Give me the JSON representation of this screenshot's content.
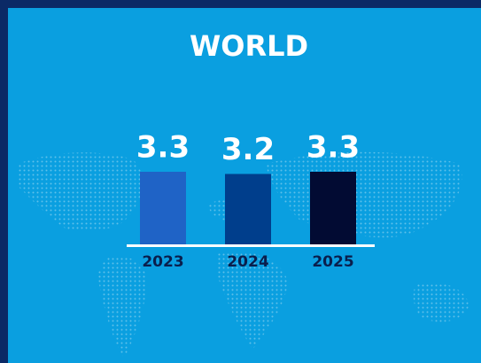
{
  "chart_data": {
    "type": "bar",
    "title": "WORLD",
    "categories": [
      "2023",
      "2024",
      "2025"
    ],
    "values": [
      3.3,
      3.2,
      3.3
    ],
    "colors": [
      "#1f63c6",
      "#003e8c",
      "#020b33"
    ]
  }
}
